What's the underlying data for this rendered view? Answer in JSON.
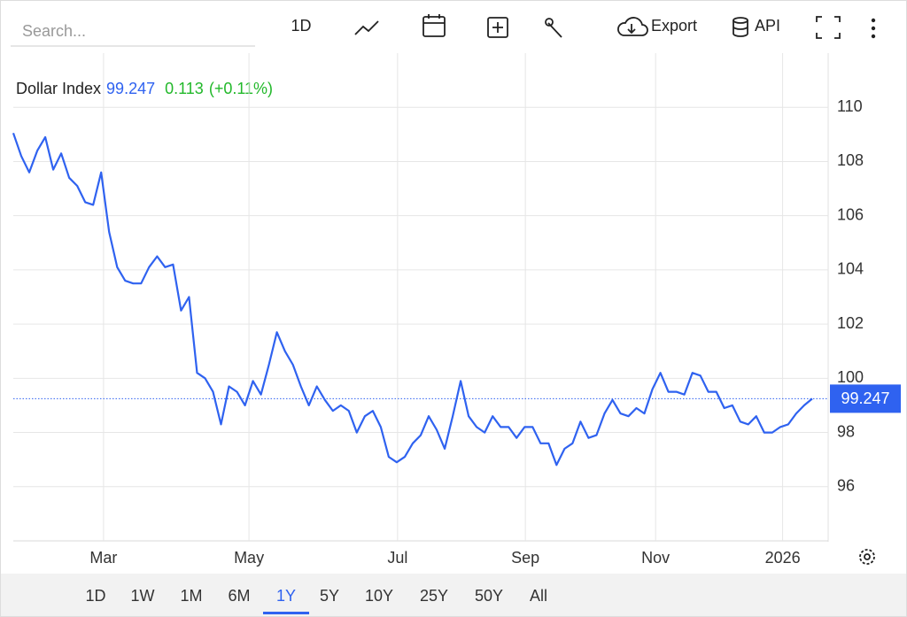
{
  "toolbar": {
    "search_placeholder": "Search...",
    "interval": "1D",
    "export": "Export",
    "api": "API"
  },
  "header": {
    "change": "0.113",
    "change_pct": "(+0.11%)"
  },
  "range_buttons": [
    {
      "label": "1D"
    },
    {
      "label": "1W"
    },
    {
      "label": "1M"
    },
    {
      "label": "6M"
    },
    {
      "label": "1Y",
      "active": true
    },
    {
      "label": "5Y"
    },
    {
      "label": "10Y"
    },
    {
      "label": "25Y"
    },
    {
      "label": "50Y"
    },
    {
      "label": "All"
    }
  ],
  "chart_data": {
    "type": "line",
    "series": [
      {
        "name": "Dollar Index",
        "color": "#2f62f0",
        "values": [
          109.05,
          108.2,
          107.6,
          108.4,
          108.9,
          107.7,
          108.3,
          107.4,
          107.1,
          106.5,
          106.4,
          107.6,
          105.4,
          104.1,
          103.6,
          103.5,
          103.5,
          104.1,
          104.5,
          104.1,
          104.2,
          102.5,
          103.0,
          100.2,
          100.0,
          99.5,
          98.3,
          99.7,
          99.5,
          99.0,
          99.9,
          99.4,
          100.5,
          101.7,
          101.0,
          100.5,
          99.7,
          99.0,
          99.7,
          99.2,
          98.8,
          99.0,
          98.8,
          98.0,
          98.6,
          98.8,
          98.2,
          97.1,
          96.9,
          97.1,
          97.6,
          97.9,
          98.6,
          98.1,
          97.4,
          98.6,
          99.9,
          98.6,
          98.2,
          98.0,
          98.6,
          98.2,
          98.2,
          97.8,
          98.2,
          98.2,
          97.6,
          97.6,
          96.8,
          97.4,
          97.6,
          98.4,
          97.8,
          97.9,
          98.7,
          99.2,
          98.7,
          98.6,
          98.9,
          98.7,
          99.6,
          100.2,
          99.5,
          99.5,
          99.4,
          100.2,
          100.1,
          99.5,
          99.5,
          98.9,
          99.0,
          98.4,
          98.3,
          98.6,
          98.0,
          98.0,
          98.2,
          98.3,
          98.7,
          99.0,
          99.247
        ]
      }
    ],
    "xlim": [
      0,
      102
    ],
    "xticks": [
      {
        "value": 11.3,
        "label": "Mar"
      },
      {
        "value": 29.5,
        "label": "May"
      },
      {
        "value": 48.1,
        "label": "Jul"
      },
      {
        "value": 64.1,
        "label": "Sep"
      },
      {
        "value": 80.4,
        "label": "Nov"
      },
      {
        "value": 96.3,
        "label": "2026"
      }
    ],
    "ylim": [
      94,
      112
    ],
    "yticks": [
      96,
      98,
      100,
      102,
      104,
      106,
      108,
      110
    ],
    "grid": true
  }
}
